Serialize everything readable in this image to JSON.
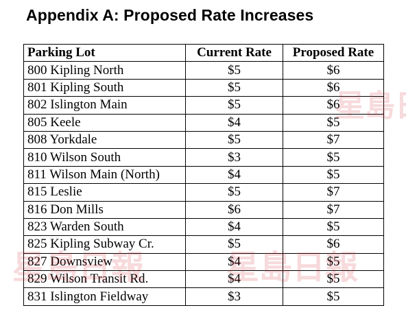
{
  "title": "Appendix A: Proposed Rate Increases",
  "table": {
    "headers": [
      "Parking Lot",
      "Current Rate",
      "Proposed Rate"
    ],
    "rows": [
      [
        "800 Kipling North",
        "$5",
        "$6"
      ],
      [
        "801 Kipling South",
        "$5",
        "$6"
      ],
      [
        "802 Islington Main",
        "$5",
        "$6"
      ],
      [
        "805 Keele",
        "$4",
        "$5"
      ],
      [
        "808 Yorkdale",
        "$5",
        "$7"
      ],
      [
        "810 Wilson South",
        "$3",
        "$5"
      ],
      [
        "811 Wilson Main (North)",
        "$4",
        "$5"
      ],
      [
        "815 Leslie",
        "$5",
        "$7"
      ],
      [
        "816 Don Mills",
        "$6",
        "$7"
      ],
      [
        "823 Warden South",
        "$4",
        "$5"
      ],
      [
        "825 Kipling Subway Cr.",
        "$5",
        "$6"
      ],
      [
        "827 Downsview",
        "$4",
        "$5"
      ],
      [
        "829 Wilson Transit Rd.",
        "$4",
        "$5"
      ],
      [
        "831 Islington Fieldway",
        "$3",
        "$5"
      ]
    ]
  },
  "watermark": {
    "text": "星島日報",
    "color": "#d0202a"
  }
}
